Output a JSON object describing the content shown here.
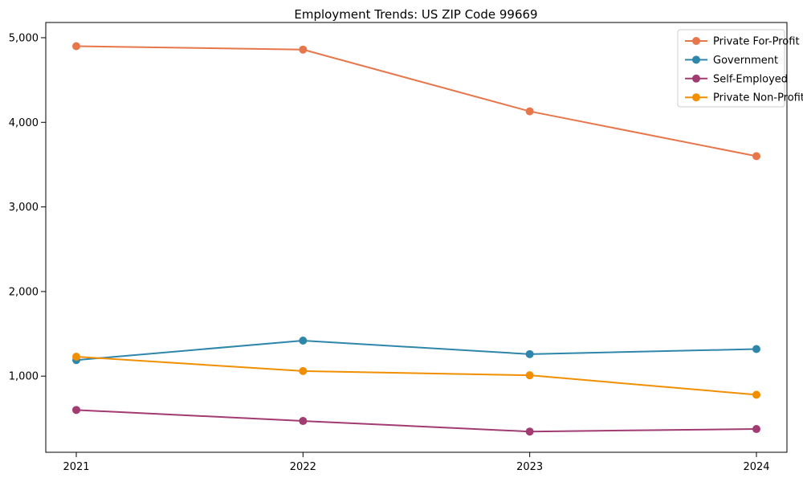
{
  "chart_data": {
    "type": "line",
    "title": "Employment Trends: US ZIP Code 99669",
    "xlabel": "",
    "ylabel": "",
    "x": [
      2021,
      2022,
      2023,
      2024
    ],
    "x_tick_labels": [
      "2021",
      "2022",
      "2023",
      "2024"
    ],
    "y_ticks": [
      1000,
      2000,
      3000,
      4000,
      5000
    ],
    "y_tick_labels": [
      "1,000",
      "2,000",
      "3,000",
      "4,000",
      "5,000"
    ],
    "ylim": [
      100,
      5180
    ],
    "grid": false,
    "marker": "circle",
    "legend": {
      "position": "upper right",
      "border_color": "#cccccc",
      "background": "#ffffff"
    },
    "series": [
      {
        "name": "Private For-Profit",
        "color": "#E8764B",
        "values": [
          4900,
          4860,
          4130,
          3600
        ]
      },
      {
        "name": "Government",
        "color": "#2E86AB",
        "values": [
          1190,
          1420,
          1260,
          1320
        ]
      },
      {
        "name": "Self-Employed",
        "color": "#A23B72",
        "values": [
          600,
          470,
          345,
          375
        ]
      },
      {
        "name": "Private Non-Profit",
        "color": "#F18F01",
        "values": [
          1230,
          1060,
          1010,
          780
        ]
      }
    ]
  }
}
